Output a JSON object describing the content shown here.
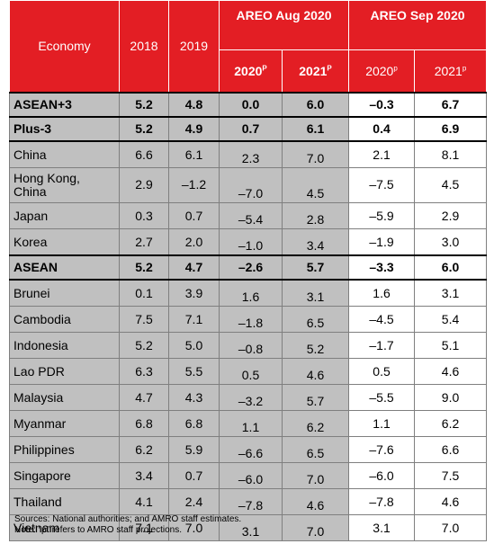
{
  "table": {
    "header": {
      "economy": "Economy",
      "years": [
        "2018",
        "2019"
      ],
      "groups": [
        {
          "title": "AREO Aug 2020",
          "columns": [
            {
              "year": "2020",
              "sup": "P"
            },
            {
              "year": "2021",
              "sup": "P"
            }
          ]
        },
        {
          "title": "AREO Sep 2020",
          "columns": [
            {
              "year": "2020",
              "sup": "p"
            },
            {
              "year": "2021",
              "sup": "p"
            }
          ]
        }
      ]
    },
    "rows": [
      {
        "name": "ASEAN+3",
        "bold": true,
        "values": [
          "5.2",
          "4.8",
          "0.0",
          "6.0",
          "–0.3",
          "6.7"
        ]
      },
      {
        "name": "Plus-3",
        "bold": true,
        "values": [
          "5.2",
          "4.9",
          "0.7",
          "6.1",
          "0.4",
          "6.9"
        ]
      },
      {
        "name": "China",
        "values": [
          "6.6",
          "6.1",
          "2.3",
          "7.0",
          "2.1",
          "8.1"
        ]
      },
      {
        "name": "Hong Kong, China",
        "values": [
          "2.9",
          "–1.2",
          "–7.0",
          "4.5",
          "–7.5",
          "4.5"
        ]
      },
      {
        "name": "Japan",
        "values": [
          "0.3",
          "0.7",
          "–5.4",
          "2.8",
          "–5.9",
          "2.9"
        ]
      },
      {
        "name": "Korea",
        "values": [
          "2.7",
          "2.0",
          "–1.0",
          "3.4",
          "–1.9",
          "3.0"
        ]
      },
      {
        "name": "ASEAN",
        "bold": true,
        "values": [
          "5.2",
          "4.7",
          "–2.6",
          "5.7",
          "–3.3",
          "6.0"
        ]
      },
      {
        "name": "Brunei",
        "values": [
          "0.1",
          "3.9",
          "1.6",
          "3.1",
          "1.6",
          "3.1"
        ]
      },
      {
        "name": "Cambodia",
        "values": [
          "7.5",
          "7.1",
          "–1.8",
          "6.5",
          "–4.5",
          "5.4"
        ]
      },
      {
        "name": "Indonesia",
        "values": [
          "5.2",
          "5.0",
          "–0.8",
          "5.2",
          "–1.7",
          "5.1"
        ]
      },
      {
        "name": "Lao PDR",
        "values": [
          "6.3",
          "5.5",
          "0.5",
          "4.6",
          "0.5",
          "4.6"
        ]
      },
      {
        "name": "Malaysia",
        "values": [
          "4.7",
          "4.3",
          "–3.2",
          "5.7",
          "–5.5",
          "9.0"
        ]
      },
      {
        "name": "Myanmar",
        "values": [
          "6.8",
          "6.8",
          "1.1",
          "6.2",
          "1.1",
          "6.2"
        ]
      },
      {
        "name": "Philippines",
        "values": [
          "6.2",
          "5.9",
          "–6.6",
          "6.5",
          "–7.6",
          "6.6"
        ]
      },
      {
        "name": "Singapore",
        "values": [
          "3.4",
          "0.7",
          "–6.0",
          "7.0",
          "–6.0",
          "7.5"
        ]
      },
      {
        "name": "Thailand",
        "values": [
          "4.1",
          "2.4",
          "–7.8",
          "4.6",
          "–7.8",
          "4.6"
        ]
      },
      {
        "name": "Vietnam",
        "values": [
          "7.1",
          "7.0",
          "3.1",
          "7.0",
          "3.1",
          "7.0"
        ]
      }
    ]
  },
  "notes": [
    "Sources: National authorities; and AMRO staff estimates.",
    "Note: “p” refers to AMRO staff projections."
  ]
}
